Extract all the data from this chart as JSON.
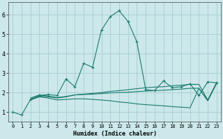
{
  "xlabel": "Humidex (Indice chaleur)",
  "ylabel": "",
  "xlim": [
    -0.5,
    23.5
  ],
  "ylim": [
    0.5,
    6.65
  ],
  "yticks": [
    1,
    2,
    3,
    4,
    5,
    6
  ],
  "xticks": [
    0,
    1,
    2,
    3,
    4,
    5,
    6,
    7,
    8,
    9,
    10,
    11,
    12,
    13,
    14,
    15,
    16,
    17,
    18,
    19,
    20,
    21,
    22,
    23
  ],
  "bg_color": "#cce8ea",
  "grid_color": "#aad0d4",
  "line_color": "#1a7a6e",
  "lines": [
    {
      "x": [
        0,
        1,
        2,
        3,
        4,
        5,
        6,
        7,
        8,
        9,
        10,
        11,
        12,
        13,
        14,
        15,
        16,
        17,
        18,
        19,
        20,
        21,
        22,
        23
      ],
      "y": [
        1.0,
        0.85,
        1.65,
        1.85,
        1.9,
        1.85,
        2.7,
        2.3,
        3.5,
        3.3,
        5.2,
        5.9,
        6.2,
        5.65,
        4.6,
        2.15,
        2.1,
        2.6,
        2.25,
        2.3,
        2.45,
        1.85,
        2.55,
        2.5
      ],
      "marker": "+"
    },
    {
      "x": [
        2,
        3,
        4,
        5,
        6,
        7,
        8,
        9,
        10,
        11,
        12,
        13,
        14,
        15,
        16,
        17,
        18,
        19,
        20,
        21,
        22,
        23
      ],
      "y": [
        1.65,
        1.82,
        1.78,
        1.72,
        1.78,
        1.88,
        1.92,
        1.96,
        2.0,
        2.06,
        2.1,
        2.15,
        2.2,
        2.25,
        2.28,
        2.3,
        2.35,
        2.38,
        2.42,
        2.42,
        1.62,
        2.52
      ],
      "marker": null
    },
    {
      "x": [
        2,
        3,
        4,
        5,
        6,
        7,
        8,
        9,
        10,
        11,
        12,
        13,
        14,
        15,
        16,
        17,
        18,
        19,
        20,
        21,
        22,
        23
      ],
      "y": [
        1.72,
        1.88,
        1.82,
        1.75,
        1.8,
        1.88,
        1.9,
        1.92,
        1.95,
        1.98,
        2.0,
        2.02,
        2.05,
        2.08,
        2.1,
        2.12,
        2.15,
        2.18,
        2.22,
        2.22,
        1.58,
        2.48
      ],
      "marker": null
    },
    {
      "x": [
        2,
        3,
        4,
        5,
        6,
        7,
        8,
        9,
        10,
        11,
        12,
        13,
        14,
        15,
        16,
        17,
        18,
        19,
        20,
        21,
        22,
        23
      ],
      "y": [
        1.62,
        1.78,
        1.72,
        1.62,
        1.65,
        1.68,
        1.68,
        1.65,
        1.62,
        1.58,
        1.52,
        1.48,
        1.42,
        1.38,
        1.35,
        1.32,
        1.28,
        1.25,
        1.22,
        2.22,
        1.58,
        2.48
      ],
      "marker": null
    }
  ]
}
